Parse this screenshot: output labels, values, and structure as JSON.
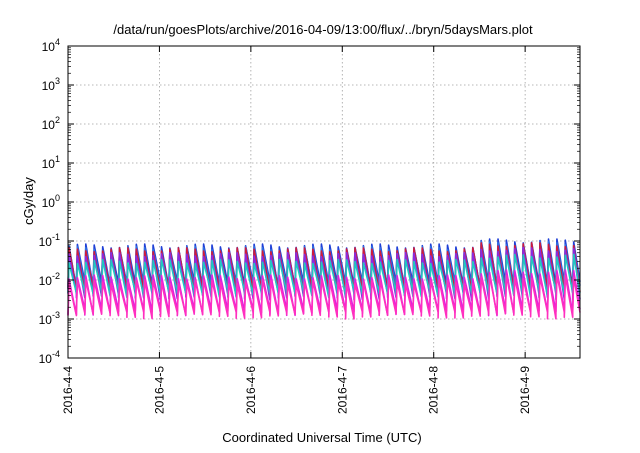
{
  "chart_data": {
    "type": "line",
    "title": "/data/run/goesPlots/archive/2016-04-09/13:00/flux/../bryn/5daysMars.plot",
    "xlabel": "Coordinated Universal Time (UTC)",
    "ylabel": "cGy/day",
    "y_scale": "log",
    "ylim_exp": [
      -4,
      4
    ],
    "y_tick_exponents": [
      -4,
      -3,
      -2,
      -1,
      0,
      1,
      2,
      3,
      4
    ],
    "xlim_days": [
      0,
      5.6
    ],
    "x_ticks": [
      {
        "label": "2016-4-4",
        "day": 0
      },
      {
        "label": "2016-4-5",
        "day": 1
      },
      {
        "label": "2016-4-6",
        "day": 2
      },
      {
        "label": "2016-4-7",
        "day": 3
      },
      {
        "label": "2016-4-8",
        "day": 4
      },
      {
        "label": "2016-4-9",
        "day": 5
      }
    ],
    "grid": true,
    "sawtooth_period_days": 0.092,
    "series": [
      {
        "color": "#1f3fd6",
        "peak": 0.075,
        "trough": 0.006
      },
      {
        "color": "#2e6fe0",
        "peak": 0.065,
        "trough": 0.005
      },
      {
        "color": "#d01a3c",
        "peak": 0.06,
        "trough": 0.004
      },
      {
        "color": "#8a2be2",
        "peak": 0.045,
        "trough": 0.003
      },
      {
        "color": "#20c8c0",
        "peak": 0.03,
        "trough": 0.0035
      },
      {
        "color": "#e020e0",
        "peak": 0.012,
        "trough": 0.0012
      },
      {
        "color": "#ff2fbf",
        "peak": 0.009,
        "trough": 0.001
      }
    ]
  }
}
